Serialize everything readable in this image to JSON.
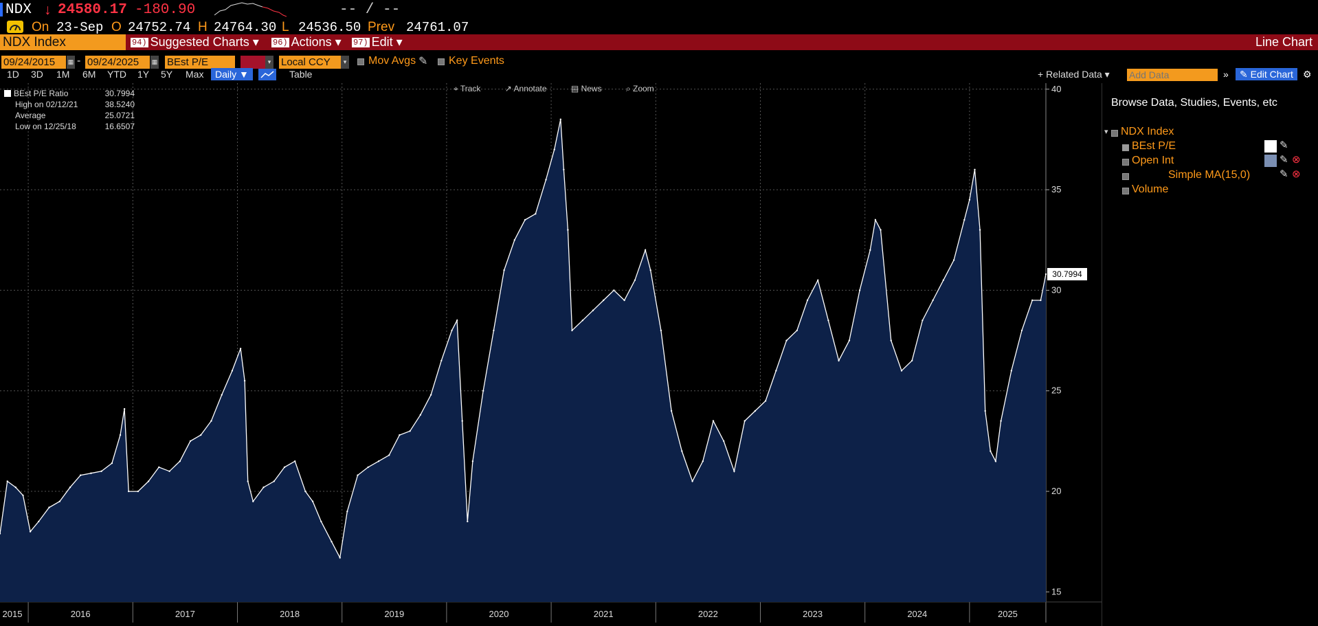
{
  "ticker": {
    "symbol": "NDX",
    "arrow": "↓",
    "last": "24580.17",
    "change": "-180.90",
    "dashes": "-- / --"
  },
  "ohlc": {
    "on_label": "On",
    "date": "23-Sep",
    "o_label": "O",
    "open": "24752.74",
    "h_label": "H",
    "high": "24764.30",
    "l_label": "L",
    "low": "24536.50",
    "prev_label": "Prev",
    "prev": "24761.07"
  },
  "menubar": {
    "security": "NDX Index",
    "items": [
      {
        "num": "94)",
        "label": "Suggested Charts ▾"
      },
      {
        "num": "96)",
        "label": "Actions ▾"
      },
      {
        "num": "97)",
        "label": "Edit ▾"
      }
    ],
    "view_title": "Line Chart"
  },
  "controls": {
    "start_date": "09/24/2015",
    "end_date": "09/24/2025",
    "field": "BEst P/E",
    "currency": "Local CCY",
    "mov_avgs": "Mov Avgs",
    "key_events": "Key Events"
  },
  "periods": [
    "1D",
    "3D",
    "1M",
    "6M",
    "YTD",
    "1Y",
    "5Y",
    "Max"
  ],
  "frequency": "Daily ▼",
  "table_label": "Table",
  "chart_tools": [
    "Track",
    "Annotate",
    "News",
    "Zoom"
  ],
  "related_data": "+ Related Data ▾",
  "add_data_placeholder": "Add Data",
  "edit_chart": "Edit Chart",
  "legend": {
    "title": "BEst P/E Ratio",
    "title_value": "30.7994",
    "high_label": "High on 02/12/21",
    "high_value": "38.5240",
    "avg_label": "Average",
    "avg_value": "25.0721",
    "low_label": "Low on 12/25/18",
    "low_value": "16.6507"
  },
  "last_value_label": "30.7994",
  "panel": {
    "heading": "Browse Data, Studies, Events, etc",
    "security": "NDX Index",
    "items": [
      {
        "label": "BEst P/E",
        "checked": true
      },
      {
        "label": "Open Int",
        "checked": false
      },
      {
        "label": "Simple MA(15,0)",
        "checked": false
      },
      {
        "label": "Volume",
        "checked": false
      }
    ]
  },
  "colors": {
    "accent_orange": "#ff9a1a",
    "menu_red": "#8e0b17",
    "area_fill": "#0d2148",
    "line": "#ffffff",
    "down_red": "#ff3344"
  },
  "chart_data": {
    "type": "area",
    "title": "",
    "xlabel": "",
    "ylabel": "",
    "ylim": [
      14.5,
      40.3
    ],
    "yticks": [
      15,
      20,
      25,
      30,
      35,
      40
    ],
    "xlim": [
      2015.73,
      2025.73
    ],
    "xticks": [
      "2015",
      "2016",
      "2017",
      "2018",
      "2019",
      "2020",
      "2021",
      "2022",
      "2023",
      "2024",
      "2025"
    ],
    "grid": true,
    "series": [
      {
        "name": "BEst P/E",
        "x": [
          2015.73,
          2015.8,
          2015.88,
          2015.95,
          2016.02,
          2016.1,
          2016.2,
          2016.3,
          2016.4,
          2016.5,
          2016.6,
          2016.7,
          2016.8,
          2016.88,
          2016.92,
          2016.96,
          2017.05,
          2017.15,
          2017.25,
          2017.35,
          2017.45,
          2017.55,
          2017.65,
          2017.75,
          2017.85,
          2017.95,
          2018.03,
          2018.07,
          2018.1,
          2018.15,
          2018.25,
          2018.35,
          2018.45,
          2018.55,
          2018.65,
          2018.72,
          2018.8,
          2018.9,
          2018.98,
          2019.05,
          2019.15,
          2019.25,
          2019.35,
          2019.45,
          2019.55,
          2019.65,
          2019.75,
          2019.85,
          2019.95,
          2020.05,
          2020.1,
          2020.15,
          2020.2,
          2020.25,
          2020.35,
          2020.45,
          2020.55,
          2020.65,
          2020.75,
          2020.85,
          2020.95,
          2021.03,
          2021.09,
          2021.12,
          2021.16,
          2021.2,
          2021.3,
          2021.4,
          2021.5,
          2021.6,
          2021.7,
          2021.8,
          2021.9,
          2021.95,
          2022.05,
          2022.15,
          2022.25,
          2022.35,
          2022.45,
          2022.55,
          2022.65,
          2022.75,
          2022.85,
          2022.95,
          2023.05,
          2023.15,
          2023.25,
          2023.35,
          2023.45,
          2023.55,
          2023.65,
          2023.75,
          2023.85,
          2023.95,
          2024.05,
          2024.1,
          2024.15,
          2024.25,
          2024.35,
          2024.45,
          2024.55,
          2024.65,
          2024.75,
          2024.85,
          2024.95,
          2025.0,
          2025.05,
          2025.1,
          2025.15,
          2025.2,
          2025.25,
          2025.3,
          2025.4,
          2025.5,
          2025.6,
          2025.68,
          2025.73
        ],
        "values": [
          17.9,
          20.5,
          20.2,
          19.8,
          18.0,
          18.5,
          19.2,
          19.5,
          20.2,
          20.8,
          20.9,
          21.0,
          21.4,
          22.8,
          24.1,
          20.0,
          20.0,
          20.5,
          21.2,
          21.0,
          21.5,
          22.5,
          22.8,
          23.5,
          24.8,
          26.0,
          27.1,
          25.5,
          20.5,
          19.5,
          20.2,
          20.5,
          21.2,
          21.5,
          20.0,
          19.5,
          18.5,
          17.5,
          16.7,
          19.0,
          20.8,
          21.2,
          21.5,
          21.8,
          22.8,
          23.0,
          23.8,
          24.8,
          26.5,
          28.0,
          28.5,
          23.5,
          18.5,
          21.5,
          25.0,
          28.0,
          31.0,
          32.5,
          33.5,
          33.8,
          35.5,
          37.0,
          38.5,
          36.0,
          33.0,
          28.0,
          28.5,
          29.0,
          29.5,
          30.0,
          29.5,
          30.5,
          32.0,
          31.0,
          28.0,
          24.0,
          22.0,
          20.5,
          21.5,
          23.5,
          22.5,
          21.0,
          23.5,
          24.0,
          24.5,
          26.0,
          27.5,
          28.0,
          29.5,
          30.5,
          28.5,
          26.5,
          27.5,
          30.0,
          32.0,
          33.5,
          33.0,
          27.5,
          26.0,
          26.5,
          28.5,
          29.5,
          30.5,
          31.5,
          33.5,
          34.5,
          36.0,
          33.0,
          24.0,
          22.0,
          21.5,
          23.5,
          26.0,
          28.0,
          29.5,
          29.5,
          30.8
        ]
      }
    ]
  }
}
